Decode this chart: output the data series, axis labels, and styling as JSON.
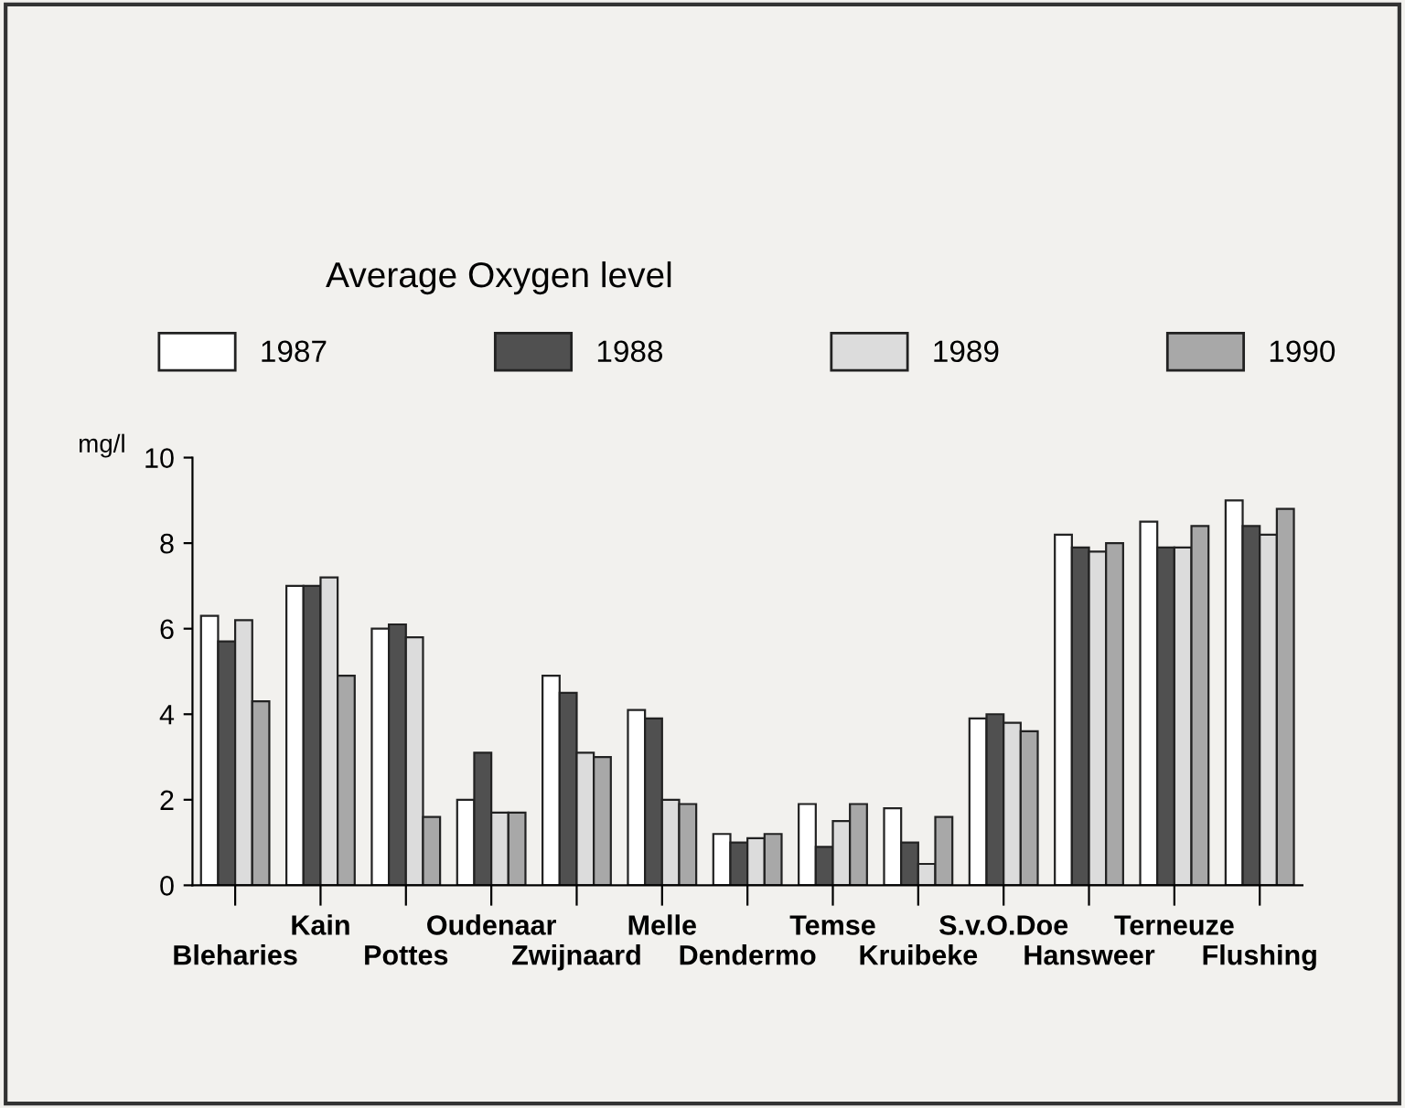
{
  "chart_data": {
    "type": "bar",
    "title": "Average Oxygen level",
    "ylabel": "mg/l",
    "categories": [
      "Bleharies",
      "Kain",
      "Pottes",
      "Oudenaar",
      "Zwijnaard",
      "Melle",
      "Dendermo",
      "Temse",
      "Kruibeke",
      "S.v.O.Doe",
      "Hansweer",
      "Terneuze",
      "Flushing"
    ],
    "series": [
      {
        "name": "1987",
        "color": "#ffffff",
        "values": [
          6.3,
          7.0,
          6.0,
          2.0,
          4.9,
          4.1,
          1.2,
          1.9,
          1.8,
          3.9,
          8.2,
          8.5,
          9.0
        ]
      },
      {
        "name": "1988",
        "color": "#505050",
        "values": [
          5.7,
          7.0,
          6.1,
          3.1,
          4.5,
          3.9,
          1.0,
          0.9,
          1.0,
          4.0,
          7.9,
          7.9,
          8.4
        ]
      },
      {
        "name": "1989",
        "color": "#dcdcdc",
        "values": [
          6.2,
          7.2,
          5.8,
          1.7,
          3.1,
          2.0,
          1.1,
          1.5,
          0.5,
          3.8,
          7.8,
          7.9,
          8.2
        ]
      },
      {
        "name": "1990",
        "color": "#a8a8a8",
        "values": [
          4.3,
          4.9,
          1.6,
          1.7,
          3.0,
          1.9,
          1.2,
          1.9,
          1.6,
          3.6,
          8.0,
          8.4,
          8.8
        ]
      }
    ],
    "ylim": [
      0,
      10
    ],
    "yticks": [
      0,
      2,
      4,
      6,
      8,
      10
    ],
    "grid": false,
    "legend": "top"
  }
}
